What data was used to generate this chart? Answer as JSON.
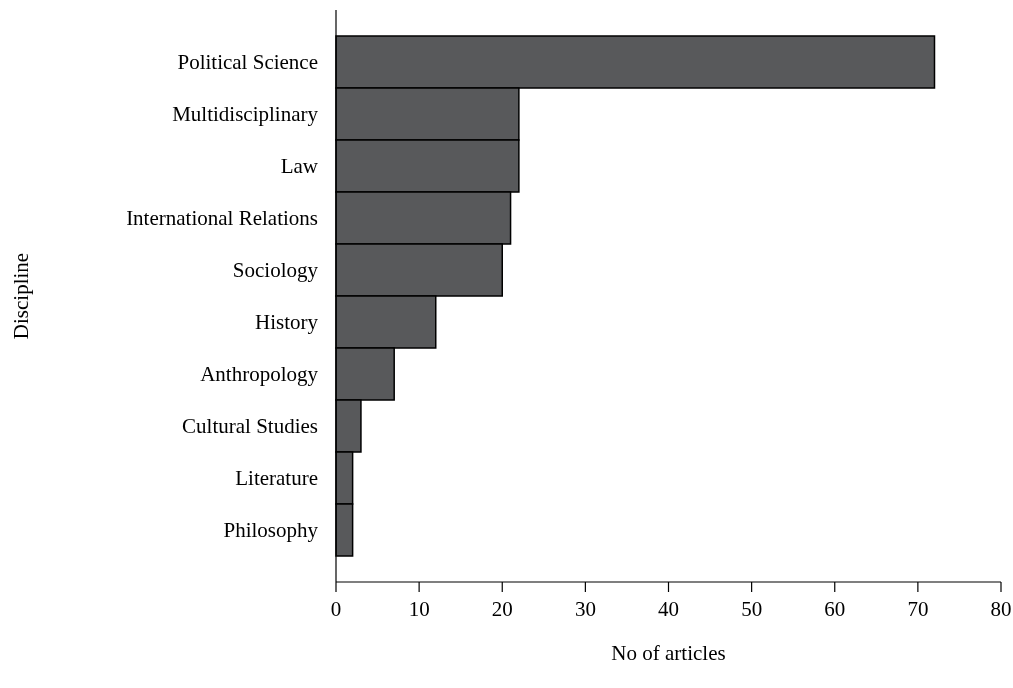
{
  "chart_data": {
    "type": "bar",
    "orientation": "horizontal",
    "xlabel": "No of articles",
    "ylabel": "Discipline",
    "categories": [
      "Political Science",
      "Multidisciplinary",
      "Law",
      "International Relations",
      "Sociology",
      "History",
      "Anthropology",
      "Cultural Studies",
      "Literature",
      "Philosophy"
    ],
    "values": [
      72,
      22,
      22,
      21,
      20,
      12,
      7,
      3,
      2,
      2
    ],
    "color": "#58595b",
    "xlim": [
      0,
      80
    ],
    "xticks": [
      0,
      10,
      20,
      30,
      40,
      50,
      60,
      70,
      80
    ],
    "grid": false
  }
}
